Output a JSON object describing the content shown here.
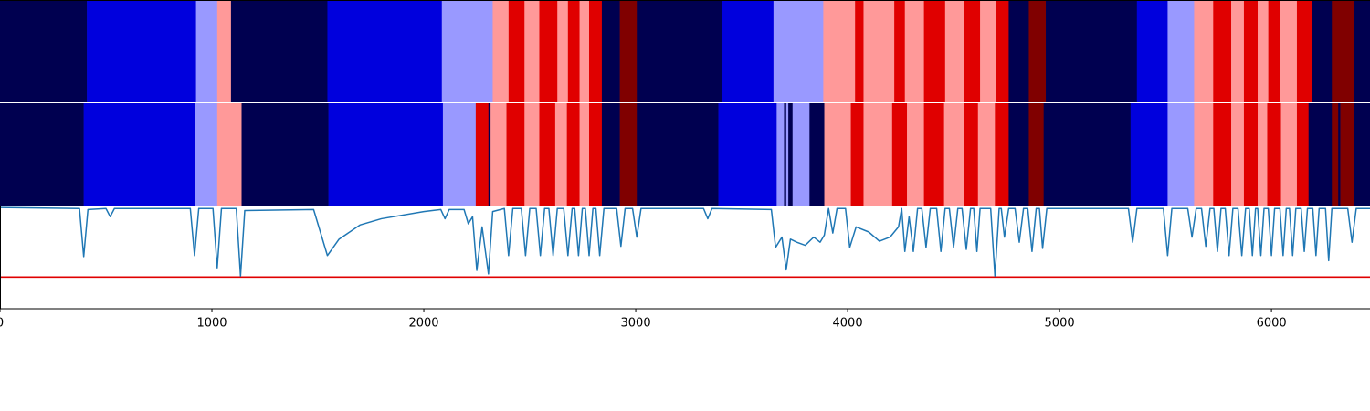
{
  "chart_data": {
    "type": "segments-and-line",
    "xlim": [
      0,
      6465
    ],
    "xticks": [
      0,
      1000,
      2000,
      3000,
      4000,
      5000,
      6000
    ],
    "rows": [
      {
        "boundaries": [
          0,
          410,
          925,
          1025,
          1090,
          1545,
          2085,
          2325,
          2400,
          2475,
          2545,
          2630,
          2680,
          2735,
          2780,
          2840,
          2925,
          3005,
          3405,
          3650,
          3885,
          4035,
          4075,
          4220,
          4270,
          4360,
          4460,
          4550,
          4625,
          4700,
          4760,
          4855,
          4935,
          5365,
          5510,
          5635,
          5725,
          5810,
          5870,
          5935,
          5985,
          6040,
          6120,
          6190,
          6285,
          6390,
          6465
        ],
        "colors": [
          "#000050",
          "#0000dd",
          "#9999ff",
          "#ff9999",
          "#000050",
          "#0000dd",
          "#9999ff",
          "#ff9999",
          "#e00000",
          "#ff9999",
          "#e00000",
          "#ff9999",
          "#e00000",
          "#ff9999",
          "#e00000",
          "#000050",
          "#800000",
          "#000050",
          "#0000dd",
          "#9999ff",
          "#ff9999",
          "#e00000",
          "#ff9999",
          "#e00000",
          "#ff9999",
          "#e00000",
          "#ff9999",
          "#e00000",
          "#ff9999",
          "#e00000",
          "#000050",
          "#800000",
          "#000050",
          "#0000dd",
          "#9999ff",
          "#ff9999",
          "#e00000",
          "#ff9999",
          "#e00000",
          "#ff9999",
          "#e00000",
          "#ff9999",
          "#e00000",
          "#000050",
          "#800000",
          "#000050"
        ]
      },
      {
        "boundaries": [
          0,
          395,
          920,
          1025,
          1140,
          1550,
          2090,
          2245,
          2305,
          2315,
          2390,
          2475,
          2545,
          2620,
          2675,
          2735,
          2780,
          2840,
          2925,
          3005,
          3390,
          3665,
          3700,
          3710,
          3720,
          3740,
          3820,
          3890,
          4015,
          4075,
          4210,
          4280,
          4360,
          4455,
          4550,
          4615,
          4695,
          4760,
          4855,
          4925,
          5335,
          5510,
          5635,
          5725,
          5810,
          5870,
          5935,
          5980,
          6045,
          6120,
          6175,
          6285,
          6315,
          6325,
          6390,
          6465
        ],
        "colors": [
          "#000050",
          "#0000dd",
          "#9999ff",
          "#ff9999",
          "#000050",
          "#0000dd",
          "#9999ff",
          "#e00000",
          "#000050",
          "#ff9999",
          "#e00000",
          "#ff9999",
          "#e00000",
          "#ff9999",
          "#e00000",
          "#ff9999",
          "#e00000",
          "#000050",
          "#800000",
          "#000050",
          "#0000dd",
          "#9999ff",
          "#000050",
          "#9999ff",
          "#000050",
          "#9999ff",
          "#000050",
          "#ff9999",
          "#e00000",
          "#ff9999",
          "#e00000",
          "#ff9999",
          "#e00000",
          "#ff9999",
          "#e00000",
          "#ff9999",
          "#e00000",
          "#000050",
          "#800000",
          "#000050",
          "#0000dd",
          "#9999ff",
          "#ff9999",
          "#e00000",
          "#ff9999",
          "#e00000",
          "#ff9999",
          "#e00000",
          "#ff9999",
          "#e00000",
          "#000050",
          "#800000",
          "#000050",
          "#800000",
          "#000050"
        ]
      }
    ],
    "ylim": [
      0,
      1
    ],
    "threshold": 0.31,
    "threshold_color": "#e00000",
    "line": {
      "color": "#1f77b4",
      "x": [
        0,
        375,
        395,
        415,
        500,
        520,
        540,
        898,
        918,
        938,
        1005,
        1025,
        1045,
        1115,
        1135,
        1155,
        1480,
        1545,
        1600,
        1700,
        1800,
        2000,
        2080,
        2100,
        2120,
        2190,
        2210,
        2230,
        2250,
        2275,
        2305,
        2325,
        2380,
        2400,
        2420,
        2460,
        2480,
        2500,
        2530,
        2550,
        2570,
        2590,
        2610,
        2630,
        2660,
        2680,
        2700,
        2712,
        2730,
        2748,
        2762,
        2780,
        2798,
        2812,
        2830,
        2850,
        2910,
        2930,
        2950,
        2985,
        3005,
        3025,
        3320,
        3340,
        3360,
        3640,
        3660,
        3690,
        3710,
        3730,
        3760,
        3800,
        3840,
        3870,
        3890,
        3910,
        3930,
        3950,
        3990,
        4010,
        4040,
        4100,
        4150,
        4200,
        4240,
        4255,
        4270,
        4290,
        4310,
        4330,
        4350,
        4370,
        4390,
        4420,
        4440,
        4460,
        4480,
        4500,
        4520,
        4540,
        4560,
        4580,
        4595,
        4610,
        4625,
        4675,
        4695,
        4715,
        4725,
        4740,
        4760,
        4790,
        4810,
        4830,
        4850,
        4870,
        4890,
        4905,
        4920,
        4940,
        5325,
        5345,
        5365,
        5490,
        5510,
        5530,
        5605,
        5625,
        5645,
        5670,
        5690,
        5710,
        5728,
        5745,
        5762,
        5782,
        5800,
        5818,
        5842,
        5860,
        5878,
        5895,
        5910,
        5925,
        5935,
        5950,
        5965,
        5985,
        6000,
        6015,
        6040,
        6055,
        6070,
        6085,
        6100,
        6115,
        6140,
        6155,
        6170,
        6195,
        6210,
        6225,
        6255,
        6270,
        6285,
        6360,
        6380,
        6400,
        6465
      ],
      "values": [
        0.99,
        0.98,
        0.51,
        0.97,
        0.98,
        0.9,
        0.98,
        0.98,
        0.52,
        0.98,
        0.98,
        0.4,
        0.98,
        0.98,
        0.32,
        0.96,
        0.97,
        0.52,
        0.68,
        0.82,
        0.88,
        0.95,
        0.97,
        0.88,
        0.97,
        0.97,
        0.83,
        0.9,
        0.375,
        0.8,
        0.34,
        0.95,
        0.98,
        0.52,
        0.98,
        0.98,
        0.52,
        0.98,
        0.98,
        0.52,
        0.98,
        0.98,
        0.52,
        0.98,
        0.98,
        0.52,
        0.98,
        0.98,
        0.52,
        0.98,
        0.98,
        0.52,
        0.98,
        0.98,
        0.52,
        0.98,
        0.98,
        0.61,
        0.98,
        0.98,
        0.7,
        0.98,
        0.98,
        0.88,
        0.98,
        0.97,
        0.6,
        0.7,
        0.38,
        0.68,
        0.65,
        0.62,
        0.7,
        0.65,
        0.72,
        0.98,
        0.74,
        0.98,
        0.98,
        0.6,
        0.8,
        0.75,
        0.66,
        0.7,
        0.8,
        0.98,
        0.56,
        0.9,
        0.56,
        0.98,
        0.98,
        0.6,
        0.98,
        0.98,
        0.56,
        0.98,
        0.98,
        0.6,
        0.98,
        0.98,
        0.58,
        0.98,
        0.98,
        0.56,
        0.98,
        0.98,
        0.32,
        0.98,
        0.98,
        0.7,
        0.98,
        0.98,
        0.65,
        0.98,
        0.98,
        0.56,
        0.98,
        0.98,
        0.59,
        0.98,
        0.98,
        0.65,
        0.98,
        0.98,
        0.52,
        0.98,
        0.98,
        0.7,
        0.98,
        0.98,
        0.61,
        0.98,
        0.98,
        0.56,
        0.98,
        0.98,
        0.52,
        0.98,
        0.98,
        0.52,
        0.98,
        0.98,
        0.52,
        0.98,
        0.98,
        0.52,
        0.98,
        0.98,
        0.52,
        0.98,
        0.98,
        0.52,
        0.98,
        0.98,
        0.52,
        0.98,
        0.98,
        0.56,
        0.98,
        0.98,
        0.52,
        0.98,
        0.98,
        0.47,
        0.98,
        0.98,
        0.65,
        0.98,
        0.98
      ]
    }
  }
}
